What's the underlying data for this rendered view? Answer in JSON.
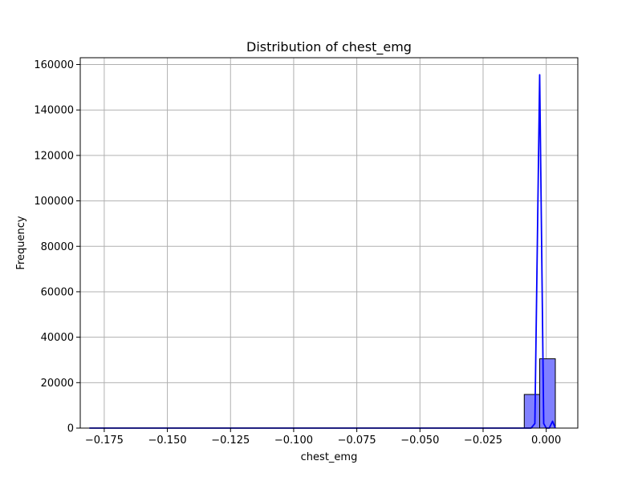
{
  "chart_data": {
    "type": "bar",
    "title": "Distribution of chest_emg",
    "xlabel": "chest_emg",
    "ylabel": "Frequency",
    "xlim": [
      -0.1845,
      0.0125
    ],
    "ylim": [
      0,
      163000
    ],
    "xticks": [
      -0.175,
      -0.15,
      -0.125,
      -0.1,
      -0.075,
      -0.05,
      -0.025,
      0.0
    ],
    "xtick_labels": [
      "−0.175",
      "−0.150",
      "−0.125",
      "−0.100",
      "−0.075",
      "−0.050",
      "−0.025",
      "0.000"
    ],
    "yticks": [
      0,
      20000,
      40000,
      60000,
      80000,
      100000,
      120000,
      140000,
      160000
    ],
    "ytick_labels": [
      "0",
      "20000",
      "40000",
      "60000",
      "80000",
      "100000",
      "120000",
      "140000",
      "160000"
    ],
    "grid": true,
    "bar_color": "#8080ff",
    "bar_edge_color": "#000000",
    "histogram": {
      "bin_edges": [
        -0.1809,
        -0.1748,
        -0.1686,
        -0.1625,
        -0.1563,
        -0.1502,
        -0.144,
        -0.1379,
        -0.1317,
        -0.1256,
        -0.1194,
        -0.1133,
        -0.1071,
        -0.101,
        -0.0948,
        -0.0887,
        -0.0825,
        -0.0764,
        -0.0702,
        -0.0641,
        -0.0579,
        -0.0518,
        -0.0456,
        -0.0395,
        -0.0333,
        -0.0272,
        -0.021,
        -0.0149,
        -0.0087,
        -0.0026,
        0.0036
      ],
      "counts": [
        0,
        0,
        0,
        0,
        0,
        0,
        0,
        0,
        0,
        0,
        0,
        0,
        0,
        0,
        0,
        0,
        0,
        0,
        0,
        0,
        0,
        0,
        0,
        0,
        0,
        0,
        0,
        0,
        14800,
        30500
      ]
    },
    "kde": {
      "color": "#0000ff",
      "x": [
        -0.1809,
        -0.01,
        -0.006,
        -0.0045,
        -0.0026,
        -0.001,
        0.0,
        0.0012,
        0.0025,
        0.0036
      ],
      "y": [
        0,
        0,
        0,
        2000,
        155500,
        2000,
        0,
        0,
        3000,
        0
      ]
    }
  }
}
